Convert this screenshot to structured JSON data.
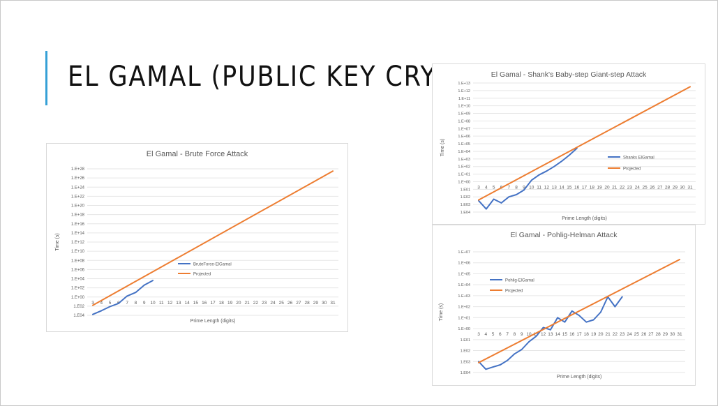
{
  "slide": {
    "title": "EL GAMAL (PUBLIC KEY CRYPTO)",
    "accent_color": "#35a0d6"
  },
  "chart_data": [
    {
      "type": "line",
      "title": "El Gamal - Brute Force Attack",
      "xlabel": "Prime Length (digits)",
      "ylabel": "Time (s)",
      "log_scale_y": true,
      "ylim_exp": [
        -4,
        28
      ],
      "y_tick_labels": [
        "1.E04",
        "1.E02",
        "1.E+00",
        "1.E+02",
        "1.E+04",
        "1.E+06",
        "1.E+08",
        "1.E+10",
        "1.E+12",
        "1.E+14",
        "1.E+16",
        "1.E+18",
        "1.E+20",
        "1.E+22",
        "1.E+24",
        "1.E+26",
        "1.E+28"
      ],
      "categories": [
        "3",
        "4",
        "5",
        "6",
        "7",
        "8",
        "9",
        "10",
        "11",
        "12",
        "13",
        "14",
        "15",
        "16",
        "17",
        "18",
        "19",
        "20",
        "21",
        "22",
        "23",
        "24",
        "25",
        "26",
        "27",
        "28",
        "29",
        "30",
        "31"
      ],
      "grid": true,
      "legend_position": "middle",
      "series": [
        {
          "name": "BruteForce-ElGamal",
          "color": "#4472c4",
          "x": [
            3,
            4,
            5,
            6,
            7,
            8,
            9,
            10
          ],
          "y_exp": [
            -3.8,
            -3.0,
            -2.1,
            -1.4,
            0.2,
            1.0,
            2.6,
            3.6
          ]
        },
        {
          "name": "Projected",
          "color": "#ed7d31",
          "x": [
            3,
            31
          ],
          "y_exp": [
            -1.8,
            27.5
          ]
        }
      ]
    },
    {
      "type": "line",
      "title": "El Gamal - Shank's Baby-step Giant-step Attack",
      "xlabel": "Prime Length (digits)",
      "ylabel": "Time (s)",
      "log_scale_y": true,
      "ylim_exp": [
        -4,
        13
      ],
      "y_tick_labels": [
        "1.E04",
        "1.E03",
        "1.E02",
        "1.E01",
        "1.E+00",
        "1.E+01",
        "1.E+02",
        "1.E+03",
        "1.E+04",
        "1.E+05",
        "1.E+06",
        "1.E+07",
        "1.E+08",
        "1.E+09",
        "1.E+10",
        "1.E+11",
        "1.E+12",
        "1.E+13"
      ],
      "categories": [
        "3",
        "4",
        "5",
        "6",
        "7",
        "8",
        "9",
        "10",
        "11",
        "12",
        "13",
        "14",
        "15",
        "16",
        "17",
        "18",
        "19",
        "20",
        "21",
        "22",
        "23",
        "24",
        "25",
        "26",
        "27",
        "28",
        "29",
        "30",
        "31"
      ],
      "grid": true,
      "legend_position": "right",
      "series": [
        {
          "name": "Shanks ElGamal",
          "color": "#4472c4",
          "x": [
            3,
            4,
            5,
            6,
            7,
            8,
            9,
            10,
            11,
            12,
            13,
            14,
            15,
            16
          ],
          "y_exp": [
            -2.5,
            -3.6,
            -2.3,
            -2.8,
            -2.0,
            -1.7,
            -1.1,
            0.2,
            0.9,
            1.4,
            2.0,
            2.7,
            3.5,
            4.4
          ]
        },
        {
          "name": "Projected",
          "color": "#ed7d31",
          "x": [
            3,
            31
          ],
          "y_exp": [
            -2.4,
            12.5
          ]
        }
      ]
    },
    {
      "type": "line",
      "title": "El Gamal - Pohlig-Helman Attack",
      "xlabel": "Prime Length (digits)",
      "ylabel": "Time (s)",
      "log_scale_y": true,
      "ylim_exp": [
        -4,
        7
      ],
      "y_tick_labels": [
        "1.E04",
        "1.E03",
        "1.E02",
        "1.E01",
        "1.E+00",
        "1.E+01",
        "1.E+02",
        "1.E+03",
        "1.E+04",
        "1.E+05",
        "1.E+06",
        "1.E+07"
      ],
      "categories": [
        "3",
        "4",
        "5",
        "6",
        "7",
        "8",
        "9",
        "10",
        "11",
        "12",
        "13",
        "14",
        "15",
        "16",
        "17",
        "18",
        "19",
        "20",
        "21",
        "22",
        "23",
        "24",
        "25",
        "26",
        "27",
        "28",
        "29",
        "30",
        "31"
      ],
      "grid": true,
      "legend_position": "top-left",
      "series": [
        {
          "name": "Pohlig-ElGamal",
          "color": "#4472c4",
          "x": [
            3,
            4,
            5,
            6,
            7,
            8,
            9,
            10,
            11,
            12,
            13,
            14,
            15,
            16,
            17,
            18,
            19,
            20,
            21,
            22,
            23
          ],
          "y_exp": [
            -3.0,
            -3.7,
            -3.5,
            -3.3,
            -2.9,
            -2.3,
            -1.9,
            -1.2,
            -0.7,
            0.1,
            -0.1,
            1.0,
            0.6,
            1.6,
            1.2,
            0.6,
            0.8,
            1.5,
            2.9,
            2.0,
            2.9
          ]
        },
        {
          "name": "Projected",
          "color": "#ed7d31",
          "x": [
            3,
            31
          ],
          "y_exp": [
            -3.1,
            6.3
          ]
        }
      ]
    }
  ]
}
